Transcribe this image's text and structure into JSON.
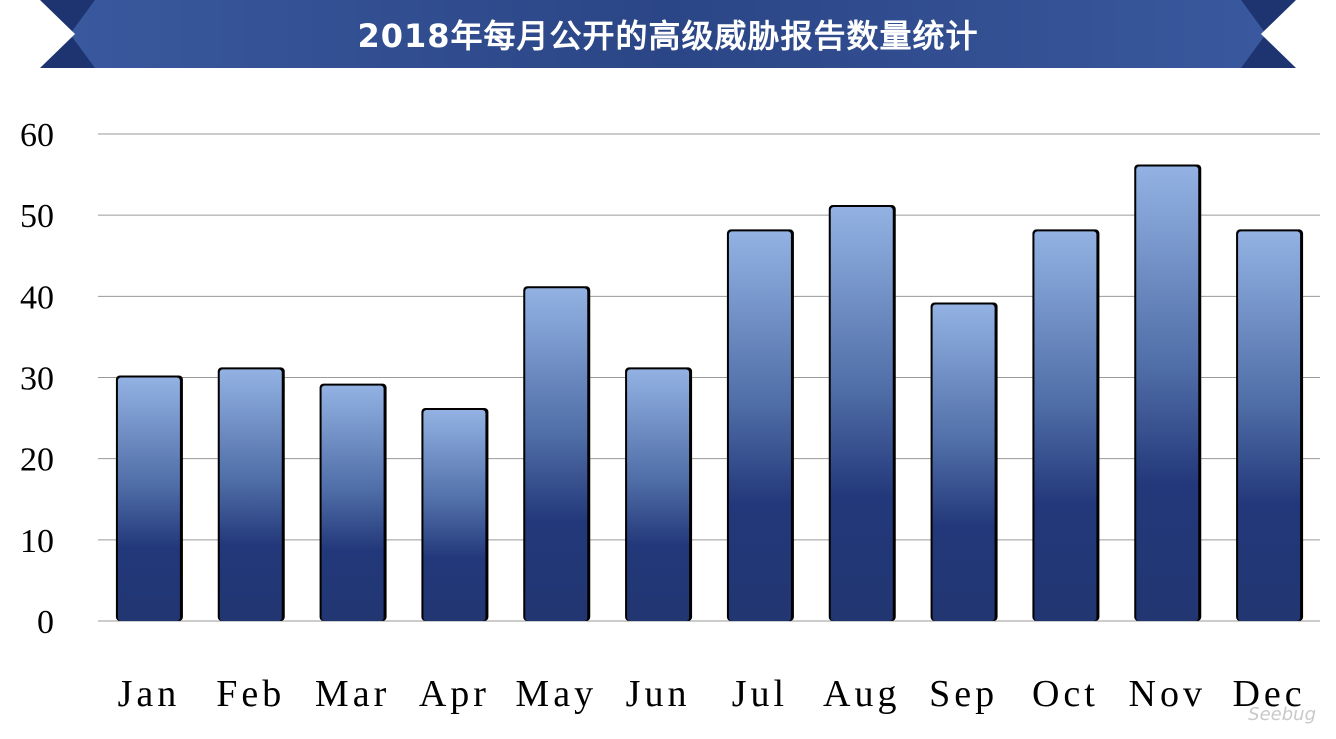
{
  "title": "2018年每月公开的高级威胁报告数量统计",
  "watermark": "Seebug",
  "colors": {
    "banner": "#2d4a8a",
    "banner_dark": "#1e3470",
    "bar_top": "#8eaee0",
    "bar_mid": "#4f6ea8",
    "bar_bottom": "#223774",
    "grid": "#9a9a9a"
  },
  "chart_data": {
    "type": "bar",
    "title": "2018年每月公开的高级威胁报告数量统计",
    "xlabel": "",
    "ylabel": "",
    "categories": [
      "Jan",
      "Feb",
      "Mar",
      "Apr",
      "May",
      "Jun",
      "Jul",
      "Aug",
      "Sep",
      "Oct",
      "Nov",
      "Dec"
    ],
    "values": [
      30,
      31,
      29,
      26,
      41,
      31,
      48,
      51,
      39,
      48,
      56,
      48
    ],
    "ylim": [
      0,
      60
    ],
    "yticks": [
      0,
      10,
      20,
      30,
      40,
      50,
      60
    ],
    "grid": true,
    "legend": "none"
  }
}
